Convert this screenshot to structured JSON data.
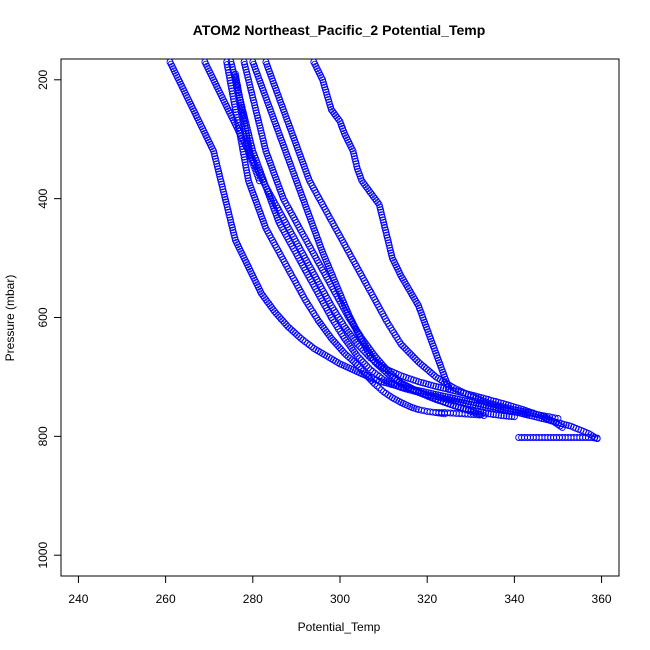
{
  "chart_data": {
    "type": "scatter",
    "title": "ATOM2 Northeast_Pacific_2 Potential_Temp",
    "xlabel": "Potential_Temp",
    "ylabel": "Pressure (mbar)",
    "xlim": [
      236,
      364
    ],
    "ylim": [
      1035,
      165
    ],
    "y_reversed": true,
    "grid": false,
    "legend": "none",
    "x_ticks": [
      "240",
      "260",
      "280",
      "300",
      "320",
      "340",
      "360"
    ],
    "y_ticks": [
      "200",
      "400",
      "600",
      "800",
      "1000"
    ],
    "marker": "open-circle",
    "point_color": "#0000ff",
    "series": [
      {
        "x": [
          261,
          263,
          265,
          267,
          269,
          271,
          272,
          273,
          274,
          275,
          276,
          278,
          280,
          282,
          285,
          288,
          291,
          294,
          297,
          300,
          303,
          306,
          309,
          313,
          318,
          323,
          328,
          333,
          338,
          343,
          348,
          353,
          357,
          359
        ],
        "y": [
          170,
          200,
          230,
          260,
          290,
          320,
          350,
          380,
          410,
          440,
          470,
          500,
          530,
          560,
          590,
          615,
          635,
          652,
          665,
          678,
          688,
          698,
          707,
          715,
          723,
          731,
          739,
          747,
          755,
          764,
          773,
          783,
          795,
          804
        ]
      },
      {
        "x": [
          269,
          271,
          273,
          275,
          277,
          279,
          281,
          283,
          286,
          289,
          292,
          295,
          298,
          301,
          304,
          307,
          310,
          314,
          318,
          322,
          326,
          330,
          334,
          338,
          342,
          346,
          349,
          351
        ],
        "y": [
          170,
          200,
          230,
          260,
          290,
          320,
          350,
          380,
          420,
          460,
          500,
          540,
          580,
          615,
          645,
          668,
          685,
          698,
          708,
          716,
          723,
          730,
          738,
          746,
          755,
          765,
          775,
          785
        ]
      },
      {
        "x": [
          275,
          276,
          277,
          278,
          279,
          280,
          282,
          284,
          286,
          289,
          292,
          295,
          298,
          301,
          304,
          307,
          310,
          314,
          318,
          322,
          326,
          330,
          334,
          338,
          341,
          343
        ],
        "y": [
          170,
          200,
          230,
          260,
          290,
          320,
          360,
          400,
          440,
          480,
          520,
          560,
          600,
          635,
          665,
          688,
          705,
          718,
          726,
          733,
          740,
          746,
          752,
          757,
          760,
          762
        ]
      },
      {
        "x": [
          278,
          279,
          280,
          281,
          282,
          283,
          285,
          287,
          290,
          293,
          296,
          299,
          302,
          305,
          308,
          311,
          314,
          318,
          322,
          326,
          330,
          334,
          337,
          340
        ],
        "y": [
          170,
          200,
          230,
          260,
          290,
          320,
          360,
          400,
          440,
          480,
          520,
          560,
          600,
          635,
          665,
          690,
          710,
          725,
          737,
          748,
          756,
          762,
          765,
          767
        ]
      },
      {
        "x": [
          274,
          275,
          276,
          277,
          278,
          279,
          281,
          283,
          286,
          289,
          292,
          295,
          298,
          301,
          304,
          306,
          308,
          310,
          312,
          314,
          316,
          318,
          320,
          322,
          324
        ],
        "y": [
          170,
          210,
          250,
          290,
          330,
          370,
          410,
          450,
          490,
          530,
          570,
          605,
          635,
          660,
          680,
          697,
          712,
          725,
          735,
          743,
          750,
          755,
          758,
          760,
          762
        ]
      },
      {
        "x": [
          280,
          282,
          284,
          286,
          288,
          290,
          292,
          294,
          296,
          298,
          300,
          302,
          304,
          306,
          308,
          311,
          314,
          318,
          322,
          326,
          330,
          333
        ],
        "y": [
          170,
          210,
          250,
          290,
          330,
          370,
          410,
          450,
          490,
          525,
          560,
          595,
          625,
          652,
          675,
          695,
          712,
          726,
          738,
          748,
          758,
          765
        ]
      },
      {
        "x": [
          283,
          285,
          287,
          289,
          291,
          293,
          296,
          299,
          302,
          305,
          308,
          311,
          314,
          318,
          322,
          326,
          330,
          334,
          338,
          342,
          345,
          348,
          350
        ],
        "y": [
          170,
          210,
          250,
          290,
          330,
          370,
          410,
          450,
          490,
          530,
          570,
          610,
          645,
          675,
          700,
          718,
          732,
          744,
          752,
          758,
          763,
          767,
          770
        ]
      },
      {
        "x": [
          276,
          276.5,
          277,
          277.5,
          278,
          278.5,
          279,
          279.5,
          280,
          280.5,
          281,
          281.5
        ],
        "y": [
          190,
          210,
          230,
          250,
          270,
          290,
          310,
          330,
          340,
          350,
          360,
          370
        ]
      },
      {
        "x": [
          341,
          343,
          345,
          347,
          349,
          351,
          353,
          355,
          357,
          359
        ],
        "y": [
          802,
          802,
          802,
          802,
          802,
          802,
          802,
          802,
          802,
          803
        ]
      },
      {
        "x": [
          322,
          324,
          326,
          328,
          330,
          332
        ],
        "y": [
          760,
          760,
          761,
          762,
          763,
          764
        ]
      },
      {
        "x": [
          294,
          295,
          296,
          297,
          298,
          300,
          301,
          303,
          304,
          305,
          307,
          309,
          310,
          311,
          312,
          314,
          316,
          318,
          319,
          320,
          321,
          322,
          323,
          324,
          325
        ],
        "y": [
          170,
          185,
          200,
          225,
          250,
          270,
          290,
          320,
          350,
          370,
          390,
          410,
          440,
          470,
          500,
          530,
          555,
          580,
          600,
          620,
          640,
          660,
          680,
          700,
          720
        ]
      }
    ]
  }
}
